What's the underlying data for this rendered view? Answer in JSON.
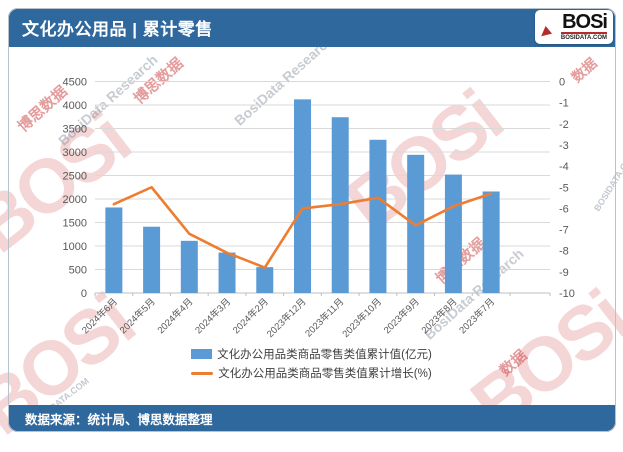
{
  "header": {
    "title": "文化办公用品 | 累计零售",
    "logo_text": "BOSi",
    "logo_domain": "BOSIDATA.COM"
  },
  "footer": {
    "source_text": "数据来源：统计局、博思数据整理"
  },
  "watermark": {
    "logo_text": "BOSi",
    "cn_text": "博思数据",
    "en_text": "BosiData Research",
    "domain_text": "BOSIDATA.COM",
    "data_text": "数据"
  },
  "colors": {
    "header_blue": "#2F689D",
    "bar_blue": "#5B9BD5",
    "line_orange": "#ED7D31",
    "grid_gray": "#D9D9D9",
    "axis_line_gray": "#BFBFBF",
    "axis_text_gray": "#595959"
  },
  "chart_data": {
    "type": "bar",
    "subtype": "combo-bar-line",
    "title": "文化办公用品 | 累计零售",
    "categories": [
      "2024年6月",
      "2024年5月",
      "2024年4月",
      "2024年3月",
      "2024年2月",
      "2023年12月",
      "2023年11月",
      "2023年10月",
      "2023年9月",
      "2023年8月",
      "2023年7月"
    ],
    "series": [
      {
        "name": "文化办公用品类商品零售类值累计值(亿元)",
        "type": "bar",
        "axis": "left",
        "values": [
          1820,
          1410,
          1110,
          860,
          550,
          4120,
          3740,
          3260,
          2940,
          2520,
          2160
        ]
      },
      {
        "name": "文化办公用品类商品零售类值累计增长(%)",
        "type": "line",
        "axis": "right",
        "values": [
          -5.8,
          -5.0,
          -7.2,
          -8.1,
          -8.8,
          -6.0,
          -5.8,
          -5.5,
          -6.8,
          -5.9,
          -5.3
        ]
      }
    ],
    "left_axis": {
      "min": 0,
      "max": 4500,
      "step": 500
    },
    "right_axis": {
      "min": -10,
      "max": 0,
      "step": 1
    },
    "grid": true,
    "legend_position": "bottom"
  }
}
